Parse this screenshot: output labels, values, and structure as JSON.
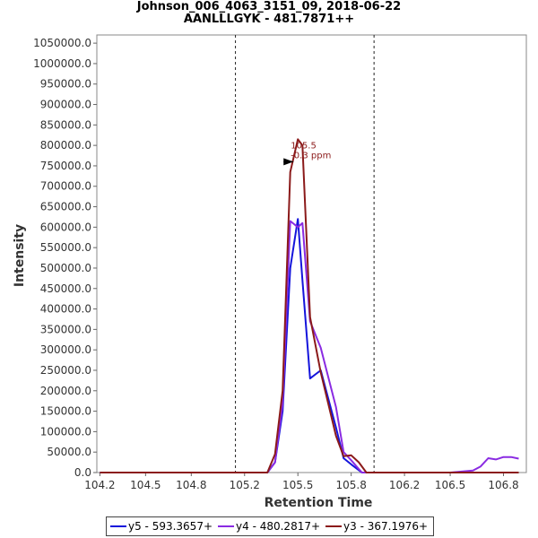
{
  "chart_data": {
    "type": "line",
    "title": "Johnson_006_4063_3151_09, 2018-06-22",
    "subtitle": "AANLLLGYK - 481.7871++",
    "xlabel": "Retention Time",
    "ylabel": "Intensity",
    "xlim": [
      104.18,
      107.0
    ],
    "ylim": [
      0,
      1070000
    ],
    "x_ticks": [
      "104.2",
      "104.5",
      "104.8",
      "105.2",
      "105.5",
      "105.8",
      "106.2",
      "106.5",
      "106.8"
    ],
    "x_tick_values": [
      104.2,
      104.5,
      104.8,
      105.15,
      105.5,
      105.85,
      106.2,
      106.5,
      106.85
    ],
    "y_ticks": [
      "0.0",
      "50000.0",
      "100000.0",
      "150000.0",
      "200000.0",
      "250000.0",
      "300000.0",
      "350000.0",
      "400000.0",
      "450000.0",
      "500000.0",
      "550000.0",
      "600000.0",
      "650000.0",
      "700000.0",
      "750000.0",
      "800000.0",
      "850000.0",
      "900000.0",
      "950000.0",
      "1000000.0",
      "1050000.0"
    ],
    "y_tick_values": [
      0,
      50000,
      100000,
      150000,
      200000,
      250000,
      300000,
      350000,
      400000,
      450000,
      500000,
      550000,
      600000,
      650000,
      700000,
      750000,
      800000,
      850000,
      900000,
      950000,
      1000000,
      1050000
    ],
    "vlines": [
      105.09,
      106.0
    ],
    "annotation": {
      "line1": "105.5",
      "line2": "-0.3 ppm",
      "x": 105.5,
      "y": 760000
    },
    "series": [
      {
        "name": "y5 - 593.3657+",
        "color": "#1414dc",
        "x": [
          104.2,
          104.5,
          105.0,
          105.3,
          105.35,
          105.4,
          105.45,
          105.5,
          105.53,
          105.58,
          105.65,
          105.75,
          105.8,
          105.85,
          105.92,
          106.0,
          106.5,
          106.7,
          106.8,
          106.95
        ],
        "y": [
          0,
          0,
          0,
          0,
          25000,
          150000,
          500000,
          620000,
          470000,
          230000,
          250000,
          110000,
          35000,
          20000,
          0,
          0,
          0,
          0,
          0,
          0
        ]
      },
      {
        "name": "y4 - 480.2817+",
        "color": "#8a2be2",
        "x": [
          104.2,
          104.5,
          105.0,
          105.3,
          105.35,
          105.4,
          105.45,
          105.5,
          105.53,
          105.58,
          105.65,
          105.75,
          105.8,
          105.85,
          105.92,
          106.0,
          106.5,
          106.65,
          106.7,
          106.75,
          106.8,
          106.85,
          106.9,
          106.95
        ],
        "y": [
          0,
          0,
          0,
          0,
          25000,
          170000,
          615000,
          600000,
          610000,
          370000,
          305000,
          160000,
          50000,
          30000,
          0,
          0,
          0,
          5000,
          15000,
          35000,
          32000,
          38000,
          38000,
          34000
        ]
      },
      {
        "name": "y3 - 367.1976+",
        "color": "#8b1a1a",
        "x": [
          104.2,
          104.5,
          105.0,
          105.3,
          105.35,
          105.4,
          105.45,
          105.5,
          105.53,
          105.58,
          105.65,
          105.75,
          105.8,
          105.85,
          105.9,
          105.95,
          106.0,
          106.5,
          106.95
        ],
        "y": [
          0,
          0,
          0,
          0,
          45000,
          200000,
          735000,
          815000,
          800000,
          380000,
          245000,
          90000,
          40000,
          42000,
          25000,
          0,
          0,
          0,
          0
        ]
      }
    ]
  }
}
